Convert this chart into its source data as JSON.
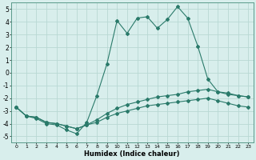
{
  "xlabel": "Humidex (Indice chaleur)",
  "xlim": [
    -0.5,
    23.5
  ],
  "ylim": [
    -5.5,
    5.5
  ],
  "xticks": [
    0,
    1,
    2,
    3,
    4,
    5,
    6,
    7,
    8,
    9,
    10,
    11,
    12,
    13,
    14,
    15,
    16,
    17,
    18,
    19,
    20,
    21,
    22,
    23
  ],
  "yticks": [
    -5,
    -4,
    -3,
    -2,
    -1,
    0,
    1,
    2,
    3,
    4,
    5
  ],
  "line_color": "#2a7a6a",
  "bg_color": "#d8eeec",
  "grid_color": "#b8d8d4",
  "spine_color": "#5a9a8a",
  "line1_x": [
    0,
    1,
    2,
    3,
    4,
    5,
    6,
    7,
    8,
    9,
    10,
    11,
    12,
    13,
    14,
    15,
    16,
    17,
    18,
    19,
    20,
    21,
    22,
    23
  ],
  "line1_y": [
    -2.7,
    -3.4,
    -3.6,
    -4.0,
    -4.1,
    -4.5,
    -4.8,
    -3.9,
    -1.8,
    0.7,
    4.1,
    3.1,
    4.3,
    4.4,
    3.5,
    4.2,
    5.2,
    4.3,
    2.1,
    -0.5,
    -1.5,
    -1.6,
    -1.8,
    -1.9
  ],
  "line2_x": [
    0,
    1,
    2,
    3,
    4,
    5,
    6,
    7,
    8,
    9,
    10,
    11,
    12,
    13,
    14,
    15,
    16,
    17,
    18,
    19,
    20,
    21,
    22,
    23
  ],
  "line2_y": [
    -2.7,
    -3.4,
    -3.5,
    -3.9,
    -4.0,
    -4.2,
    -4.4,
    -4.1,
    -3.7,
    -3.2,
    -2.8,
    -2.5,
    -2.3,
    -2.1,
    -1.9,
    -1.8,
    -1.7,
    -1.5,
    -1.4,
    -1.3,
    -1.5,
    -1.7,
    -1.8,
    -1.9
  ],
  "line3_x": [
    0,
    1,
    2,
    3,
    4,
    5,
    6,
    7,
    8,
    9,
    10,
    11,
    12,
    13,
    14,
    15,
    16,
    17,
    18,
    19,
    20,
    21,
    22,
    23
  ],
  "line3_y": [
    -2.7,
    -3.4,
    -3.5,
    -3.9,
    -4.0,
    -4.2,
    -4.4,
    -4.1,
    -3.9,
    -3.5,
    -3.2,
    -3.0,
    -2.8,
    -2.6,
    -2.5,
    -2.4,
    -2.3,
    -2.2,
    -2.1,
    -2.0,
    -2.2,
    -2.4,
    -2.6,
    -2.7
  ]
}
